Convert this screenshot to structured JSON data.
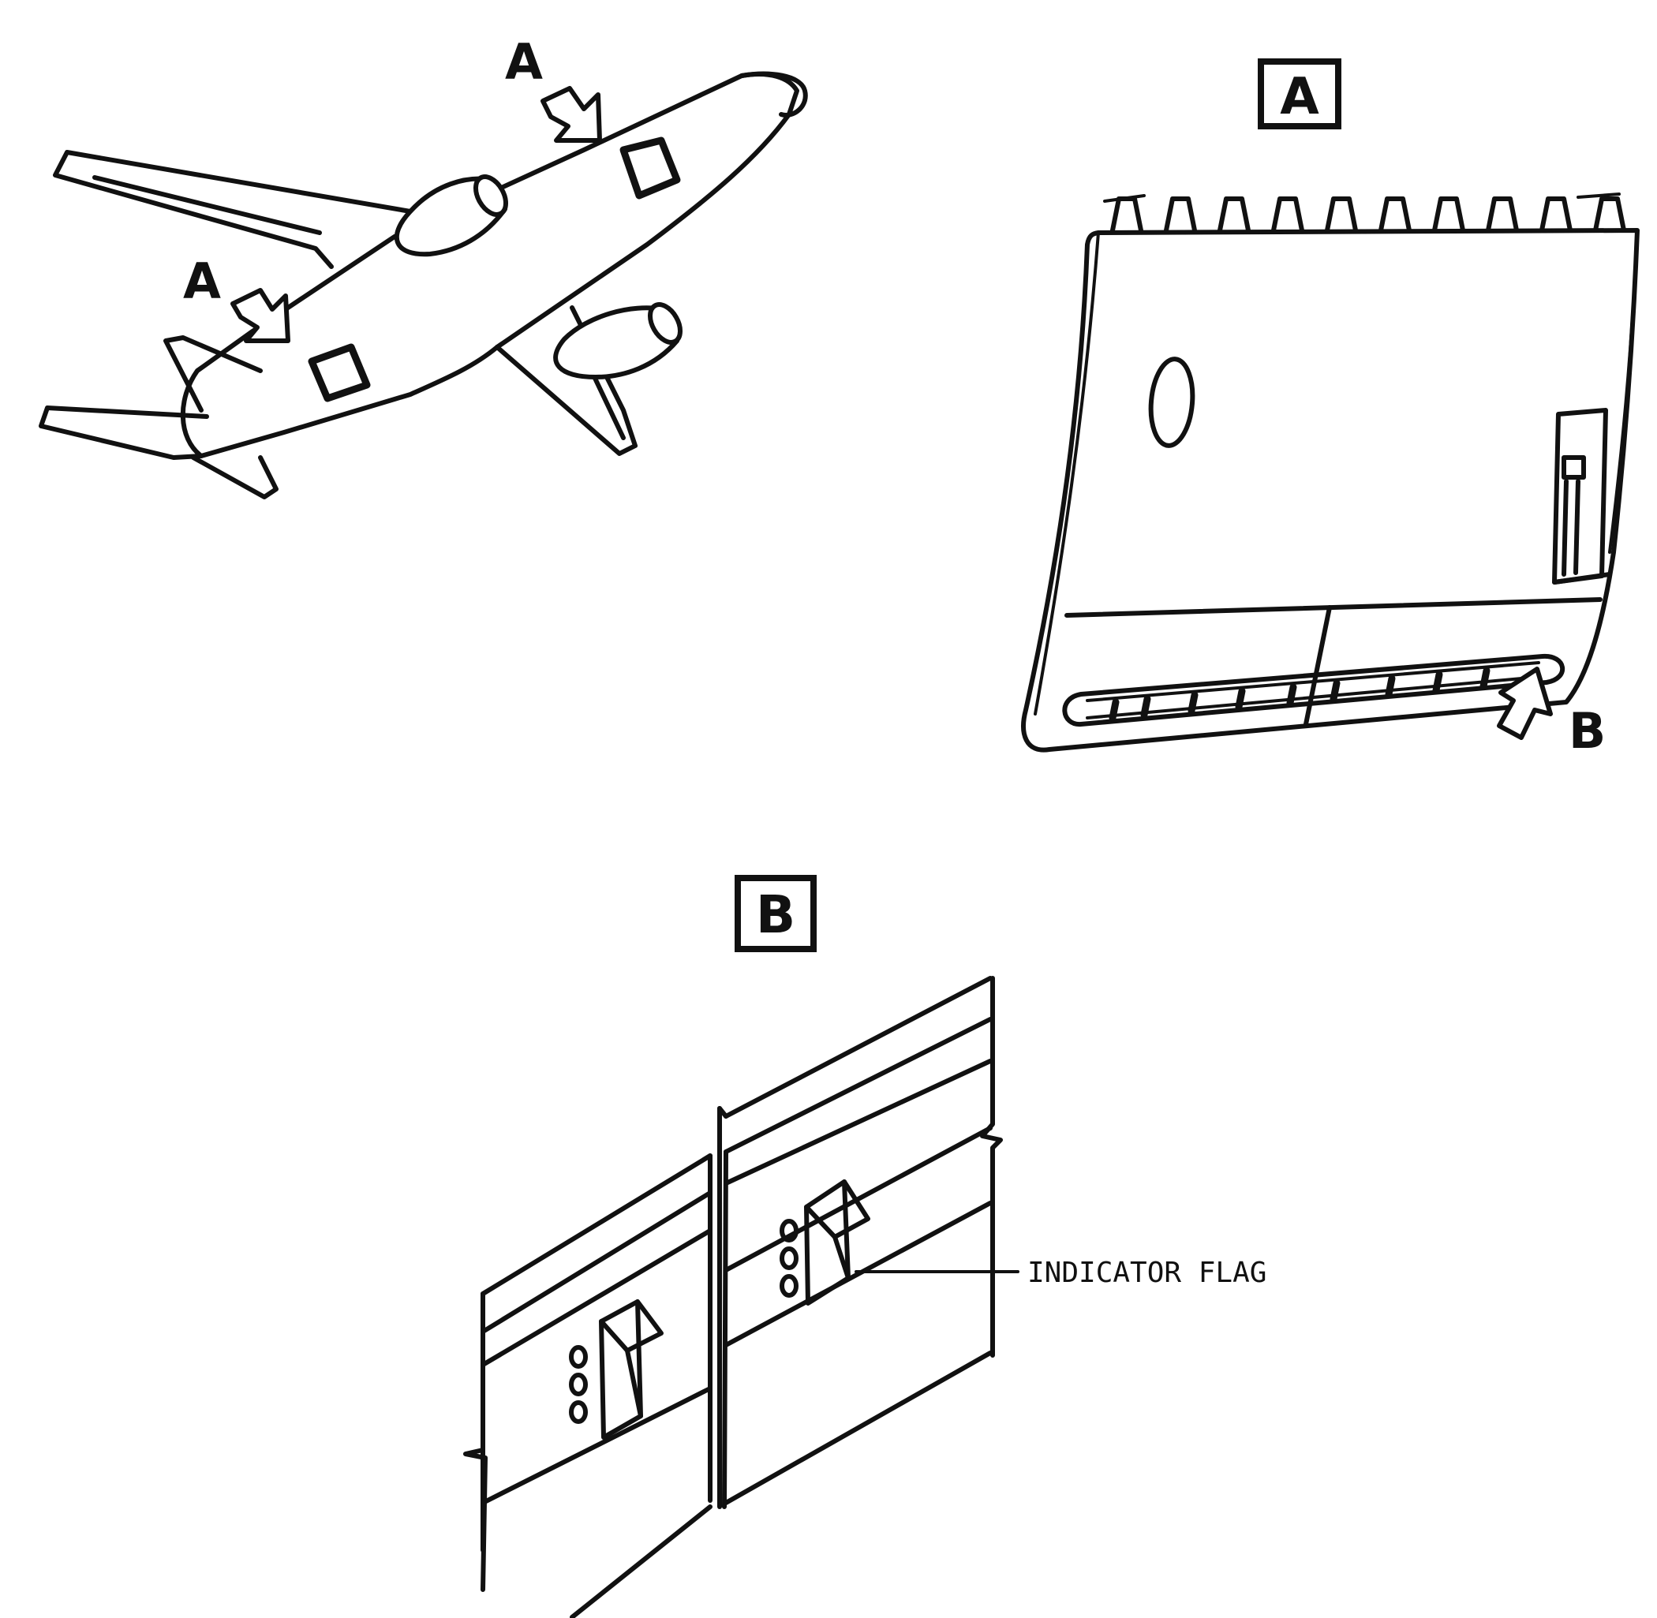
{
  "overview": {
    "arrow_label_upper": "A",
    "arrow_label_lower": "A"
  },
  "detail_a": {
    "title": "A",
    "arrow_label": "B"
  },
  "detail_b": {
    "title": "B",
    "callout": "INDICATOR FLAG"
  }
}
